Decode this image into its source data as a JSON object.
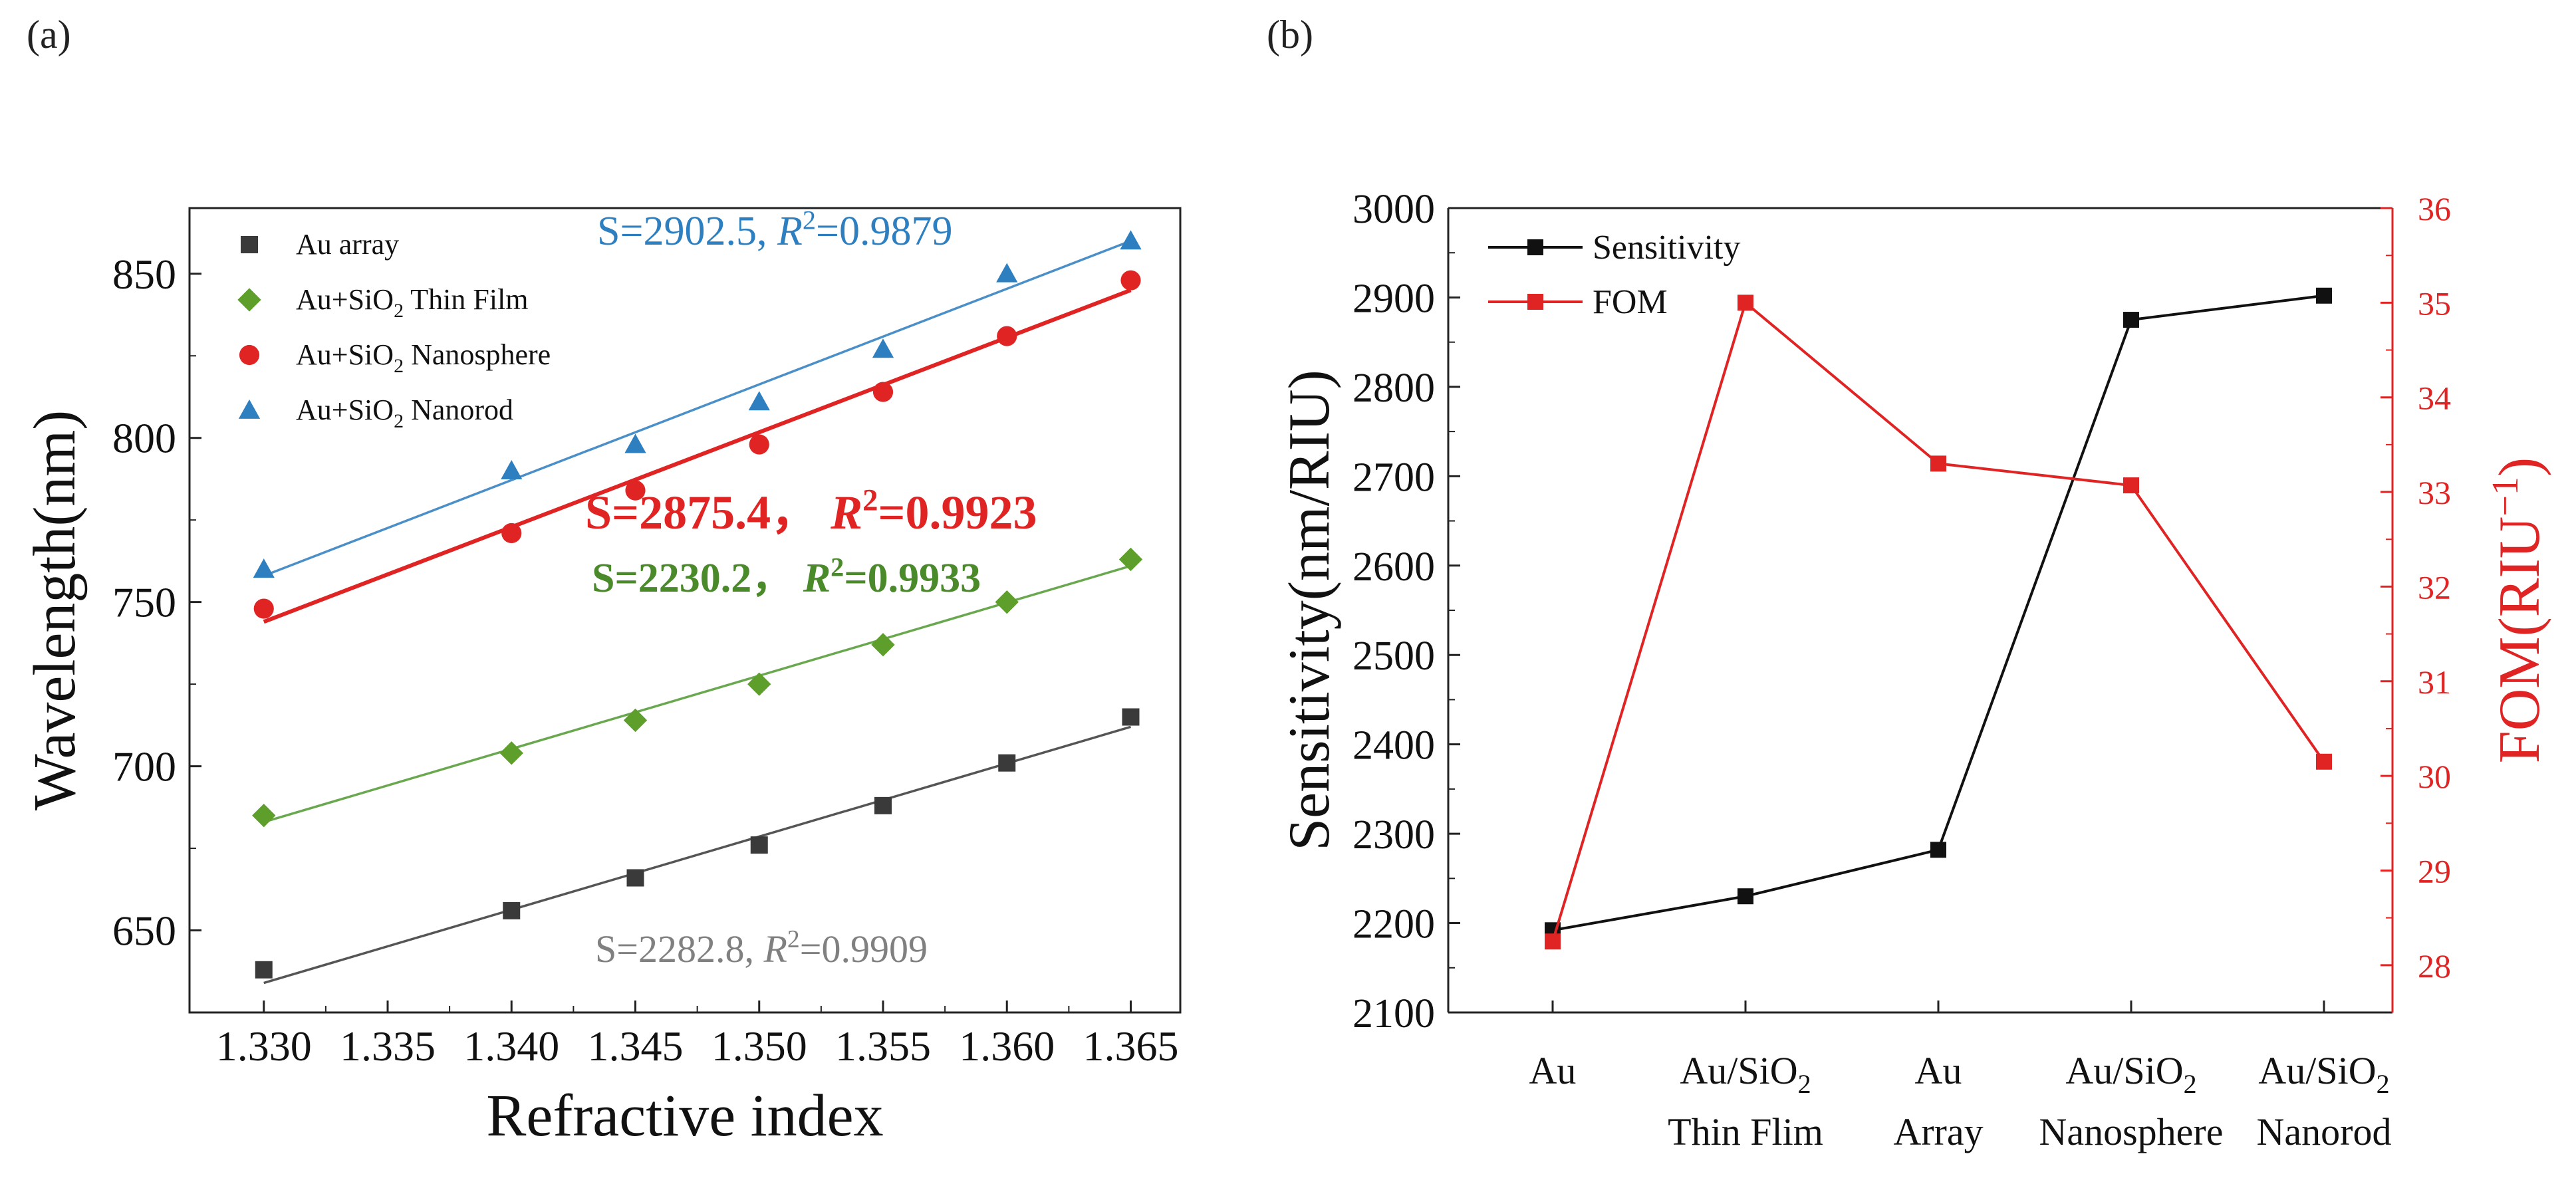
{
  "panels": {
    "a": "(a)",
    "b": "(b)"
  },
  "chart_data": [
    {
      "type": "scatter",
      "panel": "(a)",
      "xlabel": "Refractive index",
      "ylabel": "Wavelength(nm)",
      "xlim": [
        1.327,
        1.367
      ],
      "ylim": [
        625,
        870
      ],
      "xticks": [
        "1.330",
        "1.335",
        "1.340",
        "1.345",
        "1.350",
        "1.355",
        "1.360",
        "1.365"
      ],
      "yticks": [
        "650",
        "700",
        "750",
        "800",
        "850"
      ],
      "legend_position": "top-left",
      "series": [
        {
          "name": "Au array",
          "name_main": "Au array",
          "name_sub": "",
          "name_tail": "",
          "marker": "square",
          "color": "#3a3a3a",
          "line_color": "#555555",
          "x": [
            1.33,
            1.34,
            1.345,
            1.35,
            1.355,
            1.36,
            1.365
          ],
          "y": [
            638,
            656,
            666,
            676,
            688,
            701,
            715
          ],
          "fit": {
            "x": [
              1.33,
              1.365
            ],
            "y": [
              634,
              712
            ]
          },
          "label_s": "S=2282.8",
          "label_sep": ",",
          "label_r": "R",
          "label_sup": "2",
          "label_val": "=0.9909",
          "label_color": "#808080",
          "label_bold": false
        },
        {
          "name": "Au+SiO2 Thin Film",
          "name_main": "Au+SiO",
          "name_sub": "2",
          "name_tail": " Thin Film",
          "marker": "diamond",
          "color": "#5e9e2a",
          "line_color": "#6aa84f",
          "x": [
            1.33,
            1.34,
            1.345,
            1.35,
            1.355,
            1.36,
            1.365
          ],
          "y": [
            685,
            704,
            714,
            725,
            737,
            750,
            763
          ],
          "fit": {
            "x": [
              1.33,
              1.365
            ],
            "y": [
              683,
              761
            ]
          },
          "label_s": "S=2230.2",
          "label_sep": "，",
          "label_r": "R",
          "label_sup": "2",
          "label_val": "=0.9933",
          "label_color": "#4a8a2a",
          "label_bold": true
        },
        {
          "name": "Au+SiO2 Nanosphere",
          "name_main": "Au+SiO",
          "name_sub": "2",
          "name_tail": " Nanosphere",
          "marker": "circle",
          "color": "#e02424",
          "line_color": "#e02424",
          "x": [
            1.33,
            1.34,
            1.345,
            1.35,
            1.355,
            1.36,
            1.365
          ],
          "y": [
            748,
            771,
            784,
            798,
            814,
            831,
            848
          ],
          "fit": {
            "x": [
              1.33,
              1.365
            ],
            "y": [
              744,
              845
            ]
          },
          "label_s": "S=2875.4",
          "label_sep": "，",
          "label_r": "R",
          "label_sup": "2",
          "label_val": "=0.9923",
          "label_color": "#e02424",
          "label_bold": true
        },
        {
          "name": "Au+SiO2 Nanorod",
          "name_main": "Au+SiO",
          "name_sub": "2",
          "name_tail": " Nanorod",
          "marker": "triangle",
          "color": "#2d7fc0",
          "line_color": "#4a8fc8",
          "x": [
            1.33,
            1.34,
            1.345,
            1.35,
            1.355,
            1.36,
            1.365
          ],
          "y": [
            760,
            790,
            798,
            811,
            827,
            850,
            860
          ],
          "fit": {
            "x": [
              1.33,
              1.365
            ],
            "y": [
              758,
              860
            ]
          },
          "label_s": "S=2902.5",
          "label_sep": ",",
          "label_r": "R",
          "label_sup": "2",
          "label_val": "=0.9879",
          "label_color": "#2d7fc0",
          "label_bold": false
        }
      ]
    },
    {
      "type": "line",
      "panel": "(b)",
      "categories": [
        {
          "lines": [
            {
              "main": "Au",
              "sub": "",
              "tail": ""
            }
          ]
        },
        {
          "lines": [
            {
              "main": "Au/SiO",
              "sub": "2",
              "tail": ""
            },
            {
              "main": "Thin Flim",
              "sub": "",
              "tail": ""
            }
          ]
        },
        {
          "lines": [
            {
              "main": "Au",
              "sub": "",
              "tail": ""
            },
            {
              "main": "Array",
              "sub": "",
              "tail": ""
            }
          ]
        },
        {
          "lines": [
            {
              "main": "Au/SiO",
              "sub": "2",
              "tail": ""
            },
            {
              "main": "Nanosphere",
              "sub": "",
              "tail": ""
            }
          ]
        },
        {
          "lines": [
            {
              "main": "Au/SiO",
              "sub": "2",
              "tail": ""
            },
            {
              "main": "Nanorod",
              "sub": "",
              "tail": ""
            }
          ]
        }
      ],
      "ylabel_left": "Sensitivity(nm/RIU)",
      "ylabel_right_main": "FOM(RIU",
      "ylabel_right_sup": "−1",
      "ylabel_right_tail": ")",
      "ylim_left": [
        2100,
        3000
      ],
      "ylim_right": [
        27.5,
        36
      ],
      "yticks_left": [
        "2100",
        "2200",
        "2300",
        "2400",
        "2500",
        "2600",
        "2700",
        "2800",
        "2900",
        "3000"
      ],
      "yticks_right": [
        "28",
        "29",
        "30",
        "31",
        "32",
        "33",
        "34",
        "35",
        "36"
      ],
      "legend_position": "top-left",
      "series": [
        {
          "name": "Sensitivity",
          "axis": "left",
          "color": "#111111",
          "values": [
            2192,
            2230,
            2282,
            2875,
            2902
          ]
        },
        {
          "name": "FOM",
          "axis": "right",
          "color": "#e02424",
          "values": [
            28.25,
            35.0,
            33.3,
            33.07,
            30.15
          ]
        }
      ]
    }
  ]
}
